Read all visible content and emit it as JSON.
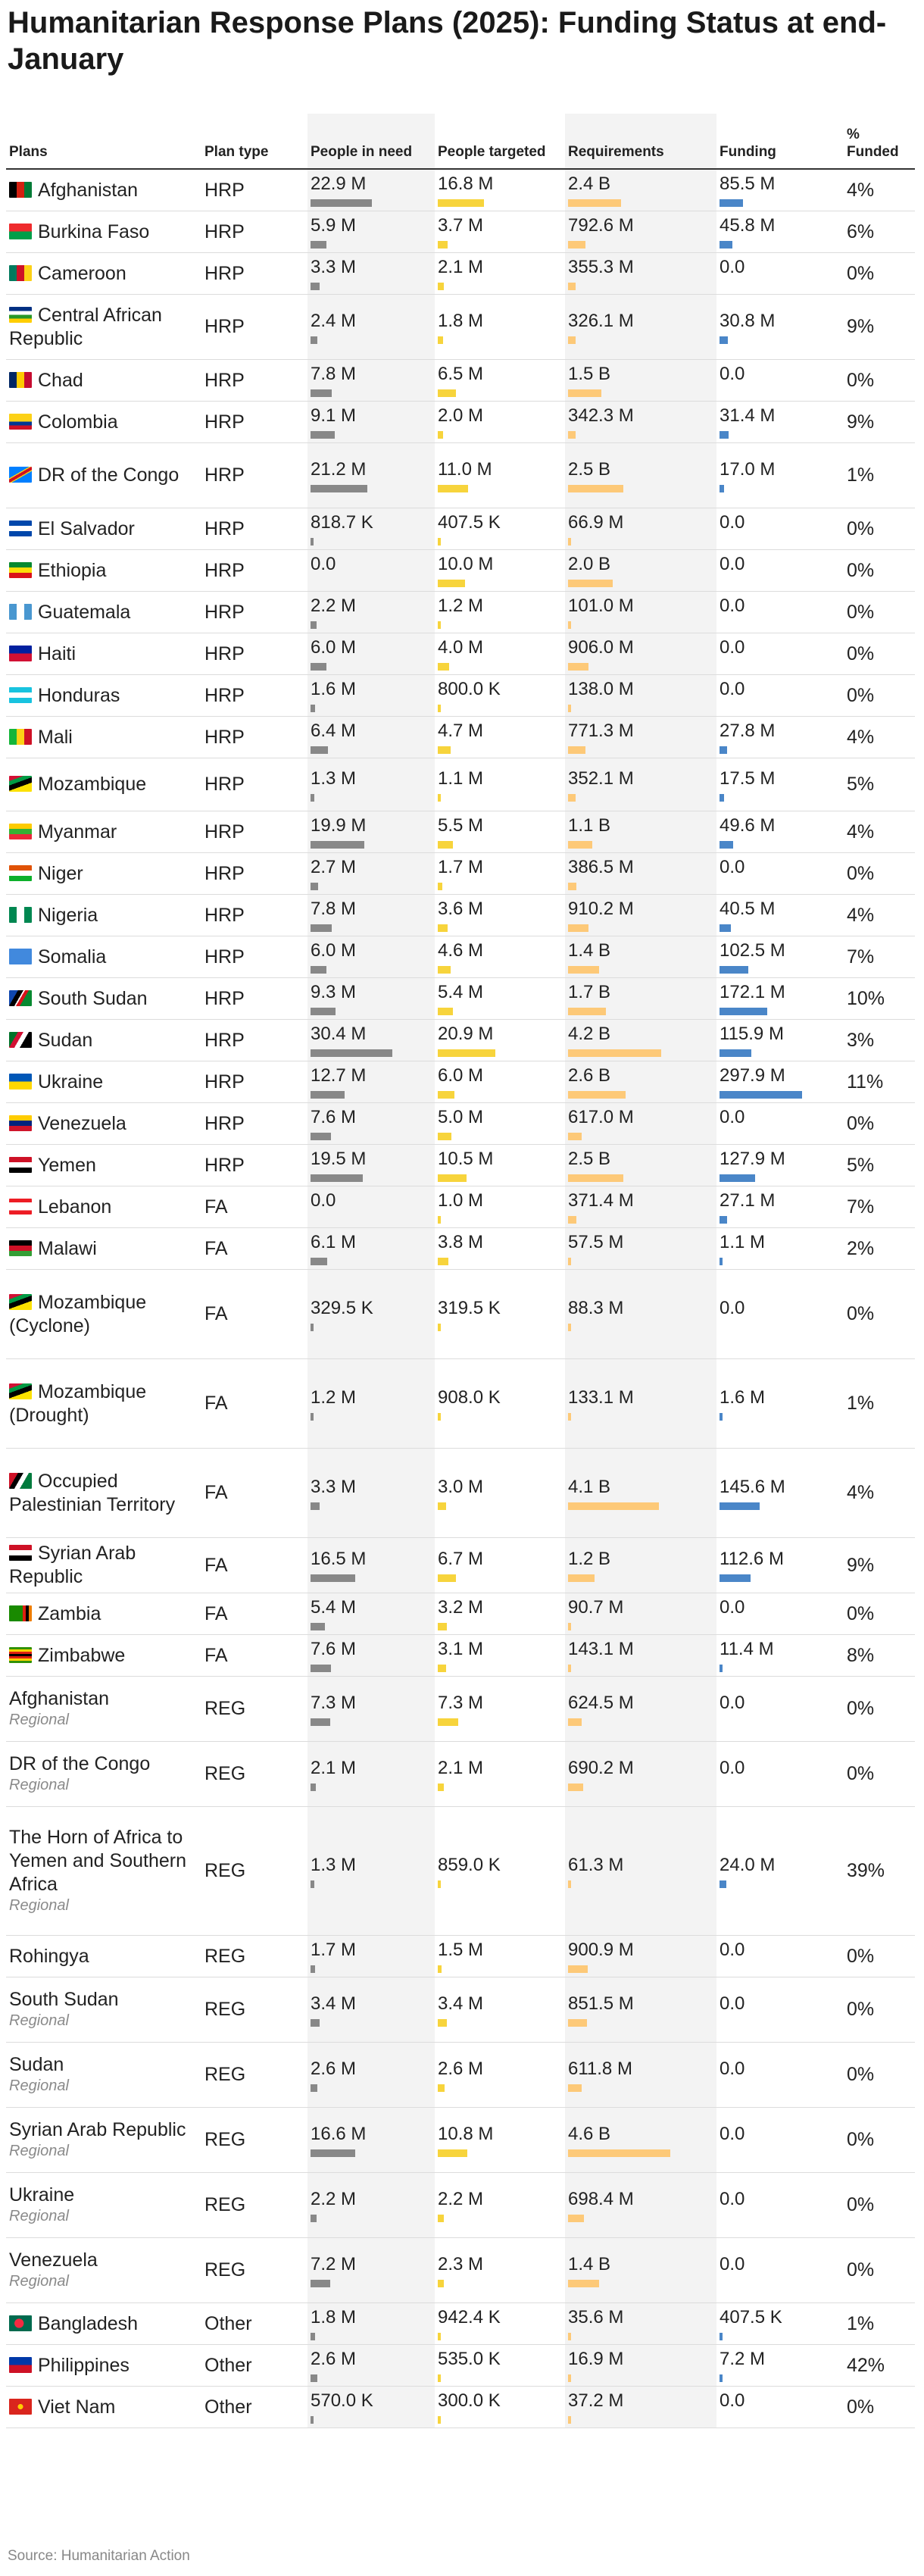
{
  "title": "Humanitarian Response Plans (2025): Funding Status at end-January",
  "source": "Source: Humanitarian Action",
  "colors": {
    "people_in_need": "#888888",
    "people_targeted": "#f7d43c",
    "requirements": "#fdc978",
    "funding": "#4a86c8",
    "shade": "#f3f3f3"
  },
  "chart_data": {
    "type": "table",
    "title": "Humanitarian Response Plans (2025): Funding Status at end-January",
    "columns": [
      "Plans",
      "Plan type",
      "People in need",
      "People targeted",
      "Requirements",
      "Funding",
      "% Funded"
    ],
    "rows": [
      {
        "plan": "Afghanistan",
        "sub": "",
        "flag": "af",
        "type": "HRP",
        "pin": "22.9 M",
        "pin_v": 22.9,
        "tgt": "16.8 M",
        "tgt_v": 16.8,
        "req": "2.4 B",
        "req_v": 2.4,
        "fund": "85.5 M",
        "fund_v": 85.5,
        "pct": "4%"
      },
      {
        "plan": "Burkina Faso",
        "sub": "",
        "flag": "bf",
        "type": "HRP",
        "pin": "5.9 M",
        "pin_v": 5.9,
        "tgt": "3.7 M",
        "tgt_v": 3.7,
        "req": "792.6 M",
        "req_v": 0.7926,
        "fund": "45.8 M",
        "fund_v": 45.8,
        "pct": "6%"
      },
      {
        "plan": "Cameroon",
        "sub": "",
        "flag": "cm",
        "type": "HRP",
        "pin": "3.3 M",
        "pin_v": 3.3,
        "tgt": "2.1 M",
        "tgt_v": 2.1,
        "req": "355.3 M",
        "req_v": 0.3553,
        "fund": "0.0",
        "fund_v": 0,
        "pct": "0%"
      },
      {
        "plan": "Central African Republic",
        "sub": "",
        "flag": "cf",
        "type": "HRP",
        "pin": "2.4 M",
        "pin_v": 2.4,
        "tgt": "1.8 M",
        "tgt_v": 1.8,
        "req": "326.1 M",
        "req_v": 0.3261,
        "fund": "30.8 M",
        "fund_v": 30.8,
        "pct": "9%"
      },
      {
        "plan": "Chad",
        "sub": "",
        "flag": "td",
        "type": "HRP",
        "pin": "7.8 M",
        "pin_v": 7.8,
        "tgt": "6.5 M",
        "tgt_v": 6.5,
        "req": "1.5 B",
        "req_v": 1.5,
        "fund": "0.0",
        "fund_v": 0,
        "pct": "0%"
      },
      {
        "plan": "Colombia",
        "sub": "",
        "flag": "co",
        "type": "HRP",
        "pin": "9.1 M",
        "pin_v": 9.1,
        "tgt": "2.0 M",
        "tgt_v": 2.0,
        "req": "342.3 M",
        "req_v": 0.3423,
        "fund": "31.4 M",
        "fund_v": 31.4,
        "pct": "9%"
      },
      {
        "plan": "DR of the Congo",
        "sub": "",
        "flag": "cd",
        "type": "HRP",
        "pin": "21.2 M",
        "pin_v": 21.2,
        "tgt": "11.0 M",
        "tgt_v": 11.0,
        "req": "2.5 B",
        "req_v": 2.5,
        "fund": "17.0 M",
        "fund_v": 17.0,
        "pct": "1%"
      },
      {
        "plan": "El Salvador",
        "sub": "",
        "flag": "sv",
        "type": "HRP",
        "pin": "818.7 K",
        "pin_v": 0.8187,
        "tgt": "407.5 K",
        "tgt_v": 0.4075,
        "req": "66.9 M",
        "req_v": 0.0669,
        "fund": "0.0",
        "fund_v": 0,
        "pct": "0%"
      },
      {
        "plan": "Ethiopia",
        "sub": "",
        "flag": "et",
        "type": "HRP",
        "pin": "0.0",
        "pin_v": 0,
        "tgt": "10.0 M",
        "tgt_v": 10.0,
        "req": "2.0 B",
        "req_v": 2.0,
        "fund": "0.0",
        "fund_v": 0,
        "pct": "0%"
      },
      {
        "plan": "Guatemala",
        "sub": "",
        "flag": "gt",
        "type": "HRP",
        "pin": "2.2 M",
        "pin_v": 2.2,
        "tgt": "1.2 M",
        "tgt_v": 1.2,
        "req": "101.0 M",
        "req_v": 0.101,
        "fund": "0.0",
        "fund_v": 0,
        "pct": "0%"
      },
      {
        "plan": "Haiti",
        "sub": "",
        "flag": "ht",
        "type": "HRP",
        "pin": "6.0 M",
        "pin_v": 6.0,
        "tgt": "4.0 M",
        "tgt_v": 4.0,
        "req": "906.0 M",
        "req_v": 0.906,
        "fund": "0.0",
        "fund_v": 0,
        "pct": "0%"
      },
      {
        "plan": "Honduras",
        "sub": "",
        "flag": "hn",
        "type": "HRP",
        "pin": "1.6 M",
        "pin_v": 1.6,
        "tgt": "800.0 K",
        "tgt_v": 0.8,
        "req": "138.0 M",
        "req_v": 0.138,
        "fund": "0.0",
        "fund_v": 0,
        "pct": "0%"
      },
      {
        "plan": "Mali",
        "sub": "",
        "flag": "ml",
        "type": "HRP",
        "pin": "6.4 M",
        "pin_v": 6.4,
        "tgt": "4.7 M",
        "tgt_v": 4.7,
        "req": "771.3 M",
        "req_v": 0.7713,
        "fund": "27.8 M",
        "fund_v": 27.8,
        "pct": "4%"
      },
      {
        "plan": "Mozambique",
        "sub": "",
        "flag": "mz",
        "type": "HRP",
        "pin": "1.3 M",
        "pin_v": 1.3,
        "tgt": "1.1 M",
        "tgt_v": 1.1,
        "req": "352.1 M",
        "req_v": 0.3521,
        "fund": "17.5 M",
        "fund_v": 17.5,
        "pct": "5%"
      },
      {
        "plan": "Myanmar",
        "sub": "",
        "flag": "mm",
        "type": "HRP",
        "pin": "19.9 M",
        "pin_v": 19.9,
        "tgt": "5.5 M",
        "tgt_v": 5.5,
        "req": "1.1 B",
        "req_v": 1.1,
        "fund": "49.6 M",
        "fund_v": 49.6,
        "pct": "4%"
      },
      {
        "plan": "Niger",
        "sub": "",
        "flag": "ne",
        "type": "HRP",
        "pin": "2.7 M",
        "pin_v": 2.7,
        "tgt": "1.7 M",
        "tgt_v": 1.7,
        "req": "386.5 M",
        "req_v": 0.3865,
        "fund": "0.0",
        "fund_v": 0,
        "pct": "0%"
      },
      {
        "plan": "Nigeria",
        "sub": "",
        "flag": "ng",
        "type": "HRP",
        "pin": "7.8 M",
        "pin_v": 7.8,
        "tgt": "3.6 M",
        "tgt_v": 3.6,
        "req": "910.2 M",
        "req_v": 0.9102,
        "fund": "40.5 M",
        "fund_v": 40.5,
        "pct": "4%"
      },
      {
        "plan": "Somalia",
        "sub": "",
        "flag": "so",
        "type": "HRP",
        "pin": "6.0 M",
        "pin_v": 6.0,
        "tgt": "4.6 M",
        "tgt_v": 4.6,
        "req": "1.4 B",
        "req_v": 1.4,
        "fund": "102.5 M",
        "fund_v": 102.5,
        "pct": "7%"
      },
      {
        "plan": "South Sudan",
        "sub": "",
        "flag": "ss",
        "type": "HRP",
        "pin": "9.3 M",
        "pin_v": 9.3,
        "tgt": "5.4 M",
        "tgt_v": 5.4,
        "req": "1.7 B",
        "req_v": 1.7,
        "fund": "172.1 M",
        "fund_v": 172.1,
        "pct": "10%"
      },
      {
        "plan": "Sudan",
        "sub": "",
        "flag": "sd",
        "type": "HRP",
        "pin": "30.4 M",
        "pin_v": 30.4,
        "tgt": "20.9 M",
        "tgt_v": 20.9,
        "req": "4.2 B",
        "req_v": 4.2,
        "fund": "115.9 M",
        "fund_v": 115.9,
        "pct": "3%"
      },
      {
        "plan": "Ukraine",
        "sub": "",
        "flag": "ua",
        "type": "HRP",
        "pin": "12.7 M",
        "pin_v": 12.7,
        "tgt": "6.0 M",
        "tgt_v": 6.0,
        "req": "2.6 B",
        "req_v": 2.6,
        "fund": "297.9 M",
        "fund_v": 297.9,
        "pct": "11%"
      },
      {
        "plan": "Venezuela",
        "sub": "",
        "flag": "ve",
        "type": "HRP",
        "pin": "7.6 M",
        "pin_v": 7.6,
        "tgt": "5.0 M",
        "tgt_v": 5.0,
        "req": "617.0 M",
        "req_v": 0.617,
        "fund": "0.0",
        "fund_v": 0,
        "pct": "0%"
      },
      {
        "plan": "Yemen",
        "sub": "",
        "flag": "ye",
        "type": "HRP",
        "pin": "19.5 M",
        "pin_v": 19.5,
        "tgt": "10.5 M",
        "tgt_v": 10.5,
        "req": "2.5 B",
        "req_v": 2.5,
        "fund": "127.9 M",
        "fund_v": 127.9,
        "pct": "5%"
      },
      {
        "plan": "Lebanon",
        "sub": "",
        "flag": "lb",
        "type": "FA",
        "pin": "0.0",
        "pin_v": 0,
        "tgt": "1.0 M",
        "tgt_v": 1.0,
        "req": "371.4 M",
        "req_v": 0.3714,
        "fund": "27.1 M",
        "fund_v": 27.1,
        "pct": "7%"
      },
      {
        "plan": "Malawi",
        "sub": "",
        "flag": "mw",
        "type": "FA",
        "pin": "6.1 M",
        "pin_v": 6.1,
        "tgt": "3.8 M",
        "tgt_v": 3.8,
        "req": "57.5 M",
        "req_v": 0.0575,
        "fund": "1.1 M",
        "fund_v": 1.1,
        "pct": "2%"
      },
      {
        "plan": "Mozambique (Cyclone)",
        "sub": "",
        "flag": "mz",
        "type": "FA",
        "pin": "329.5 K",
        "pin_v": 0.3295,
        "tgt": "319.5 K",
        "tgt_v": 0.3195,
        "req": "88.3 M",
        "req_v": 0.0883,
        "fund": "0.0",
        "fund_v": 0,
        "pct": "0%"
      },
      {
        "plan": "Mozambique (Drought)",
        "sub": "",
        "flag": "mz",
        "type": "FA",
        "pin": "1.2 M",
        "pin_v": 1.2,
        "tgt": "908.0 K",
        "tgt_v": 0.908,
        "req": "133.1 M",
        "req_v": 0.1331,
        "fund": "1.6 M",
        "fund_v": 1.6,
        "pct": "1%"
      },
      {
        "plan": "Occupied Palestinian Territory",
        "sub": "",
        "flag": "ps",
        "type": "FA",
        "pin": "3.3 M",
        "pin_v": 3.3,
        "tgt": "3.0 M",
        "tgt_v": 3.0,
        "req": "4.1 B",
        "req_v": 4.1,
        "fund": "145.6 M",
        "fund_v": 145.6,
        "pct": "4%"
      },
      {
        "plan": "Syrian Arab Republic",
        "sub": "",
        "flag": "sy",
        "type": "FA",
        "pin": "16.5 M",
        "pin_v": 16.5,
        "tgt": "6.7 M",
        "tgt_v": 6.7,
        "req": "1.2 B",
        "req_v": 1.2,
        "fund": "112.6 M",
        "fund_v": 112.6,
        "pct": "9%"
      },
      {
        "plan": "Zambia",
        "sub": "",
        "flag": "zm",
        "type": "FA",
        "pin": "5.4 M",
        "pin_v": 5.4,
        "tgt": "3.2 M",
        "tgt_v": 3.2,
        "req": "90.7 M",
        "req_v": 0.0907,
        "fund": "0.0",
        "fund_v": 0,
        "pct": "0%"
      },
      {
        "plan": "Zimbabwe",
        "sub": "",
        "flag": "zw",
        "type": "FA",
        "pin": "7.6 M",
        "pin_v": 7.6,
        "tgt": "3.1 M",
        "tgt_v": 3.1,
        "req": "143.1 M",
        "req_v": 0.1431,
        "fund": "11.4 M",
        "fund_v": 11.4,
        "pct": "8%"
      },
      {
        "plan": "Afghanistan",
        "sub": "Regional",
        "flag": "",
        "type": "REG",
        "pin": "7.3 M",
        "pin_v": 7.3,
        "tgt": "7.3 M",
        "tgt_v": 7.3,
        "req": "624.5 M",
        "req_v": 0.6245,
        "fund": "0.0",
        "fund_v": 0,
        "pct": "0%"
      },
      {
        "plan": "DR of the Congo",
        "sub": "Regional",
        "flag": "",
        "type": "REG",
        "pin": "2.1 M",
        "pin_v": 2.1,
        "tgt": "2.1 M",
        "tgt_v": 2.1,
        "req": "690.2 M",
        "req_v": 0.6902,
        "fund": "0.0",
        "fund_v": 0,
        "pct": "0%"
      },
      {
        "plan": "The Horn of Africa to Yemen and Southern Africa",
        "sub": "Regional",
        "flag": "",
        "type": "REG",
        "pin": "1.3 M",
        "pin_v": 1.3,
        "tgt": "859.0 K",
        "tgt_v": 0.859,
        "req": "61.3 M",
        "req_v": 0.0613,
        "fund": "24.0 M",
        "fund_v": 24.0,
        "pct": "39%"
      },
      {
        "plan": "Rohingya",
        "sub": "",
        "flag": "",
        "type": "REG",
        "pin": "1.7 M",
        "pin_v": 1.7,
        "tgt": "1.5 M",
        "tgt_v": 1.5,
        "req": "900.9 M",
        "req_v": 0.9009,
        "fund": "0.0",
        "fund_v": 0,
        "pct": "0%"
      },
      {
        "plan": "South Sudan",
        "sub": "Regional",
        "flag": "",
        "type": "REG",
        "pin": "3.4 M",
        "pin_v": 3.4,
        "tgt": "3.4 M",
        "tgt_v": 3.4,
        "req": "851.5 M",
        "req_v": 0.8515,
        "fund": "0.0",
        "fund_v": 0,
        "pct": "0%"
      },
      {
        "plan": "Sudan",
        "sub": "Regional",
        "flag": "",
        "type": "REG",
        "pin": "2.6 M",
        "pin_v": 2.6,
        "tgt": "2.6 M",
        "tgt_v": 2.6,
        "req": "611.8 M",
        "req_v": 0.6118,
        "fund": "0.0",
        "fund_v": 0,
        "pct": "0%"
      },
      {
        "plan": "Syrian Arab Republic",
        "sub": "Regional",
        "flag": "",
        "type": "REG",
        "pin": "16.6 M",
        "pin_v": 16.6,
        "tgt": "10.8 M",
        "tgt_v": 10.8,
        "req": "4.6 B",
        "req_v": 4.6,
        "fund": "0.0",
        "fund_v": 0,
        "pct": "0%"
      },
      {
        "plan": "Ukraine",
        "sub": "Regional",
        "flag": "",
        "type": "REG",
        "pin": "2.2 M",
        "pin_v": 2.2,
        "tgt": "2.2 M",
        "tgt_v": 2.2,
        "req": "698.4 M",
        "req_v": 0.6984,
        "fund": "0.0",
        "fund_v": 0,
        "pct": "0%"
      },
      {
        "plan": "Venezuela",
        "sub": "Regional",
        "flag": "",
        "type": "REG",
        "pin": "7.2 M",
        "pin_v": 7.2,
        "tgt": "2.3 M",
        "tgt_v": 2.3,
        "req": "1.4 B",
        "req_v": 1.4,
        "fund": "0.0",
        "fund_v": 0,
        "pct": "0%"
      },
      {
        "plan": "Bangladesh",
        "sub": "",
        "flag": "bd",
        "type": "Other",
        "pin": "1.8 M",
        "pin_v": 1.8,
        "tgt": "942.4 K",
        "tgt_v": 0.9424,
        "req": "35.6 M",
        "req_v": 0.0356,
        "fund": "407.5 K",
        "fund_v": 0.4075,
        "pct": "1%"
      },
      {
        "plan": "Philippines",
        "sub": "",
        "flag": "ph",
        "type": "Other",
        "pin": "2.6 M",
        "pin_v": 2.6,
        "tgt": "535.0 K",
        "tgt_v": 0.535,
        "req": "16.9 M",
        "req_v": 0.0169,
        "fund": "7.2 M",
        "fund_v": 7.2,
        "pct": "42%"
      },
      {
        "plan": "Viet Nam",
        "sub": "",
        "flag": "vn",
        "type": "Other",
        "pin": "570.0 K",
        "pin_v": 0.57,
        "tgt": "300.0 K",
        "tgt_v": 0.3,
        "req": "37.2 M",
        "req_v": 0.0372,
        "fund": "0.0",
        "fund_v": 0,
        "pct": "0%"
      }
    ],
    "units": {
      "pin_v": "millions of people",
      "tgt_v": "millions of people",
      "req_v": "billions USD",
      "fund_v": "millions USD"
    }
  }
}
